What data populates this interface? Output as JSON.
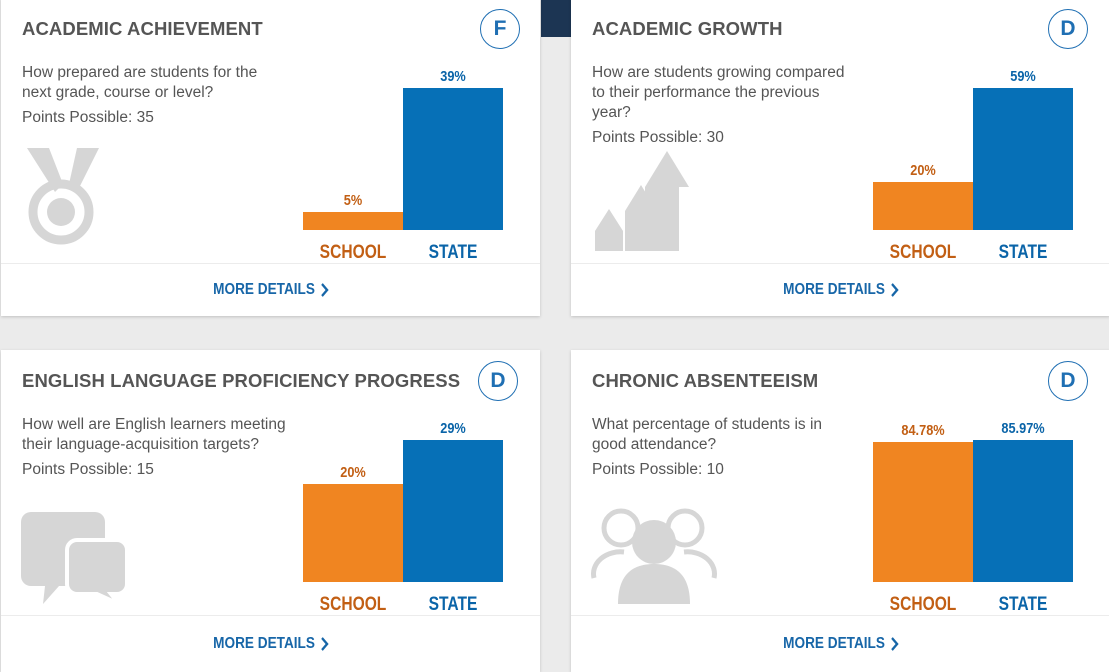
{
  "colors": {
    "school": "#f08521",
    "state": "#0670b7",
    "icon": "#d6d6d6",
    "link": "#1766a8"
  },
  "cards": [
    {
      "title": "ACADEMIC ACHIEVEMENT",
      "grade": "F",
      "question": "How prepared are students for the next grade, course or level?",
      "points": "Points Possible: 35",
      "icon": "medal-icon",
      "chart_data": {
        "type": "bar",
        "categories": [
          "SCHOOL",
          "STATE"
        ],
        "values": [
          5,
          39
        ],
        "labels": [
          "5%",
          "39%"
        ],
        "ylim": [
          0,
          39
        ]
      },
      "more": "MORE DETAILS"
    },
    {
      "title": "ACADEMIC GROWTH",
      "grade": "D",
      "question": "How are students growing compared to their performance the previous year?",
      "points": "Points Possible: 30",
      "icon": "growth-arrows-icon",
      "chart_data": {
        "type": "bar",
        "categories": [
          "SCHOOL",
          "STATE"
        ],
        "values": [
          20,
          59
        ],
        "labels": [
          "20%",
          "59%"
        ],
        "ylim": [
          0,
          59
        ]
      },
      "more": "MORE DETAILS"
    },
    {
      "title": "ENGLISH LANGUAGE PROFICIENCY PROGRESS",
      "grade": "D",
      "question": "How well are English learners meeting their language-acquisition targets?",
      "points": "Points Possible: 15",
      "icon": "speech-bubbles-icon",
      "chart_data": {
        "type": "bar",
        "categories": [
          "SCHOOL",
          "STATE"
        ],
        "values": [
          20,
          29
        ],
        "labels": [
          "20%",
          "29%"
        ],
        "ylim": [
          0,
          29
        ]
      },
      "more": "MORE DETAILS"
    },
    {
      "title": "CHRONIC ABSENTEEISM",
      "grade": "D",
      "question": "What percentage of students is in good attendance?",
      "points": "Points Possible: 10",
      "icon": "people-icon",
      "chart_data": {
        "type": "bar",
        "categories": [
          "SCHOOL",
          "STATE"
        ],
        "values": [
          84.78,
          85.97
        ],
        "labels": [
          "84.78%",
          "85.97%"
        ],
        "ylim": [
          0,
          85.97
        ]
      },
      "more": "MORE DETAILS"
    }
  ]
}
